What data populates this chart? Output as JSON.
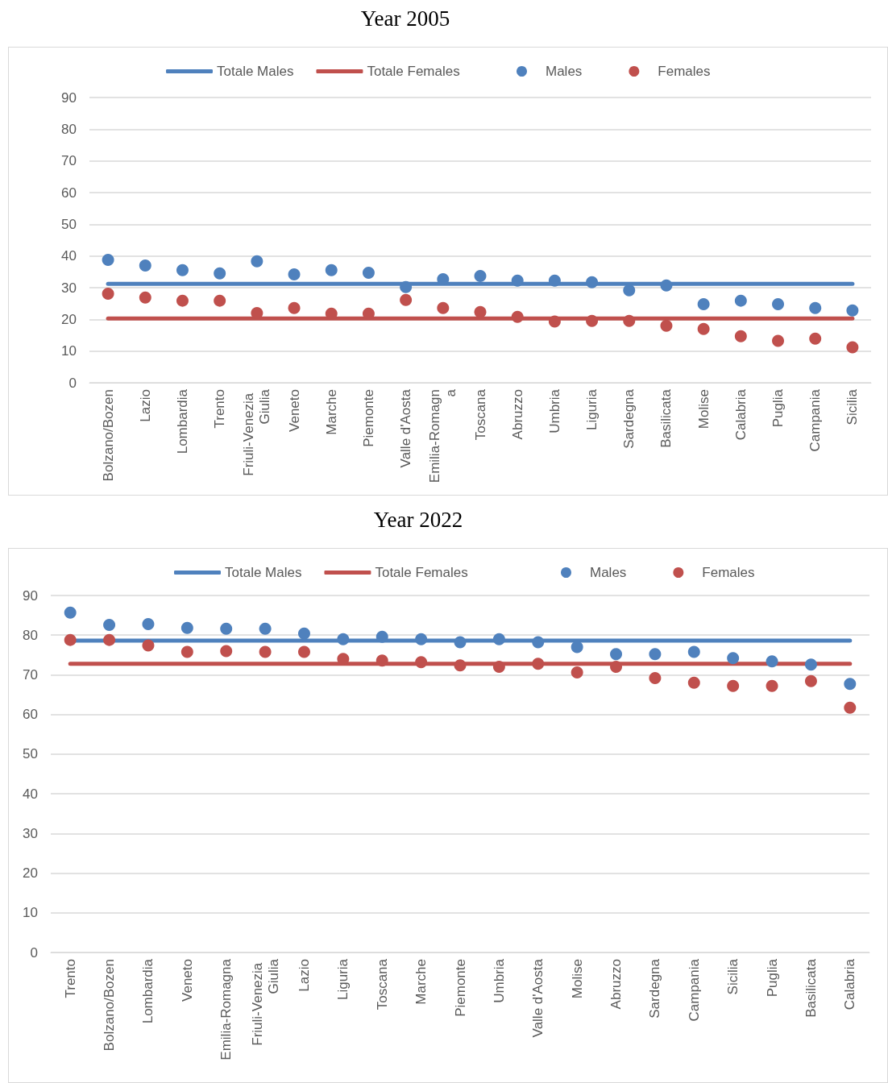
{
  "chart_data": [
    {
      "type": "scatter",
      "title": "Year 2005",
      "categories": [
        "Bolzano/Bozen",
        "Lazio",
        "Lombardia",
        "Trento",
        "Friuli-Venezia Giulia",
        "Veneto",
        "Marche",
        "Piemonte",
        "Valle d'Aosta",
        "Emilia-Romagna",
        "Toscana",
        "Abruzzo",
        "Umbria",
        "Liguria",
        "Sardegna",
        "Basilicata",
        "Molise",
        "Calabria",
        "Puglia",
        "Campania",
        "Sicilia"
      ],
      "series": [
        {
          "name": "Totale Males",
          "type": "line",
          "marker": "none",
          "color": "#4f81bd",
          "values": [
            31.2,
            31.2,
            31.2,
            31.2,
            31.2,
            31.2,
            31.2,
            31.2,
            31.2,
            31.2,
            31.2,
            31.2,
            31.2,
            31.2,
            31.2,
            31.2,
            31.2,
            31.2,
            31.2,
            31.2,
            31.2
          ]
        },
        {
          "name": "Totale Females",
          "type": "line",
          "marker": "none",
          "color": "#c0504d",
          "values": [
            20.3,
            20.3,
            20.3,
            20.3,
            20.3,
            20.3,
            20.3,
            20.3,
            20.3,
            20.3,
            20.3,
            20.3,
            20.3,
            20.3,
            20.3,
            20.3,
            20.3,
            20.3,
            20.3,
            20.3,
            20.3
          ]
        },
        {
          "name": "Males",
          "color": "#4f81bd",
          "values": [
            38.8,
            37,
            35.5,
            34.5,
            38.3,
            34.2,
            35.5,
            34.7,
            30.2,
            32.7,
            33.7,
            32.2,
            32.2,
            31.7,
            29.2,
            30.7,
            24.8,
            25.9,
            24.8,
            23.6,
            22.8
          ]
        },
        {
          "name": "Females",
          "color": "#c0504d",
          "values": [
            28.1,
            26.9,
            25.9,
            25.9,
            22,
            23.6,
            21.8,
            21.8,
            26.1,
            23.6,
            22.3,
            20.8,
            19.3,
            19.5,
            19.5,
            18,
            17,
            14.7,
            13.2,
            13.9,
            11.2
          ]
        }
      ],
      "ylim": [
        0,
        90
      ],
      "yticks": [
        0,
        10,
        20,
        30,
        40,
        50,
        60,
        70,
        80,
        90
      ],
      "grid": "y",
      "legend": "top",
      "marker": "circle"
    },
    {
      "type": "scatter",
      "title": "Year 2022",
      "categories": [
        "Trento",
        "Bolzano/Bozen",
        "Lombardia",
        "Veneto",
        "Emilia-Romagna",
        "Friuli-Venezia Giulia",
        "Lazio",
        "Liguria",
        "Toscana",
        "Marche",
        "Piemonte",
        "Umbria",
        "Valle d'Aosta",
        "Molise",
        "Abruzzo",
        "Sardegna",
        "Campania",
        "Sicilia",
        "Puglia",
        "Basilicata",
        "Calabria"
      ],
      "series": [
        {
          "name": "Totale Males",
          "type": "line",
          "marker": "none",
          "color": "#4f81bd",
          "values": [
            78.6,
            78.6,
            78.6,
            78.6,
            78.6,
            78.6,
            78.6,
            78.6,
            78.6,
            78.6,
            78.6,
            78.6,
            78.6,
            78.6,
            78.6,
            78.6,
            78.6,
            78.6,
            78.6,
            78.6,
            78.6
          ]
        },
        {
          "name": "Totale Females",
          "type": "line",
          "marker": "none",
          "color": "#c0504d",
          "values": [
            72.8,
            72.8,
            72.8,
            72.8,
            72.8,
            72.8,
            72.8,
            72.8,
            72.8,
            72.8,
            72.8,
            72.8,
            72.8,
            72.8,
            72.8,
            72.8,
            72.8,
            72.8,
            72.8,
            72.8,
            72.8
          ]
        },
        {
          "name": "Males",
          "color": "#4f81bd",
          "values": [
            85.7,
            82.6,
            82.8,
            81.8,
            81.6,
            81.6,
            80.4,
            79,
            79.6,
            79,
            78.2,
            79,
            78.2,
            77,
            75.2,
            75.2,
            75.8,
            74.2,
            73.4,
            72.6,
            67.7
          ]
        },
        {
          "name": "Females",
          "color": "#c0504d",
          "values": [
            78.8,
            78.8,
            77.4,
            75.8,
            76,
            75.8,
            75.8,
            74,
            73.6,
            73.2,
            72.4,
            72,
            72.8,
            70.6,
            72,
            69.2,
            68,
            67.2,
            67.2,
            68.4,
            61.7
          ]
        }
      ],
      "ylim": [
        0,
        90
      ],
      "yticks": [
        0,
        10,
        20,
        30,
        40,
        50,
        60,
        70,
        80,
        90
      ],
      "grid": "y",
      "legend": "top",
      "marker": "circle"
    }
  ]
}
